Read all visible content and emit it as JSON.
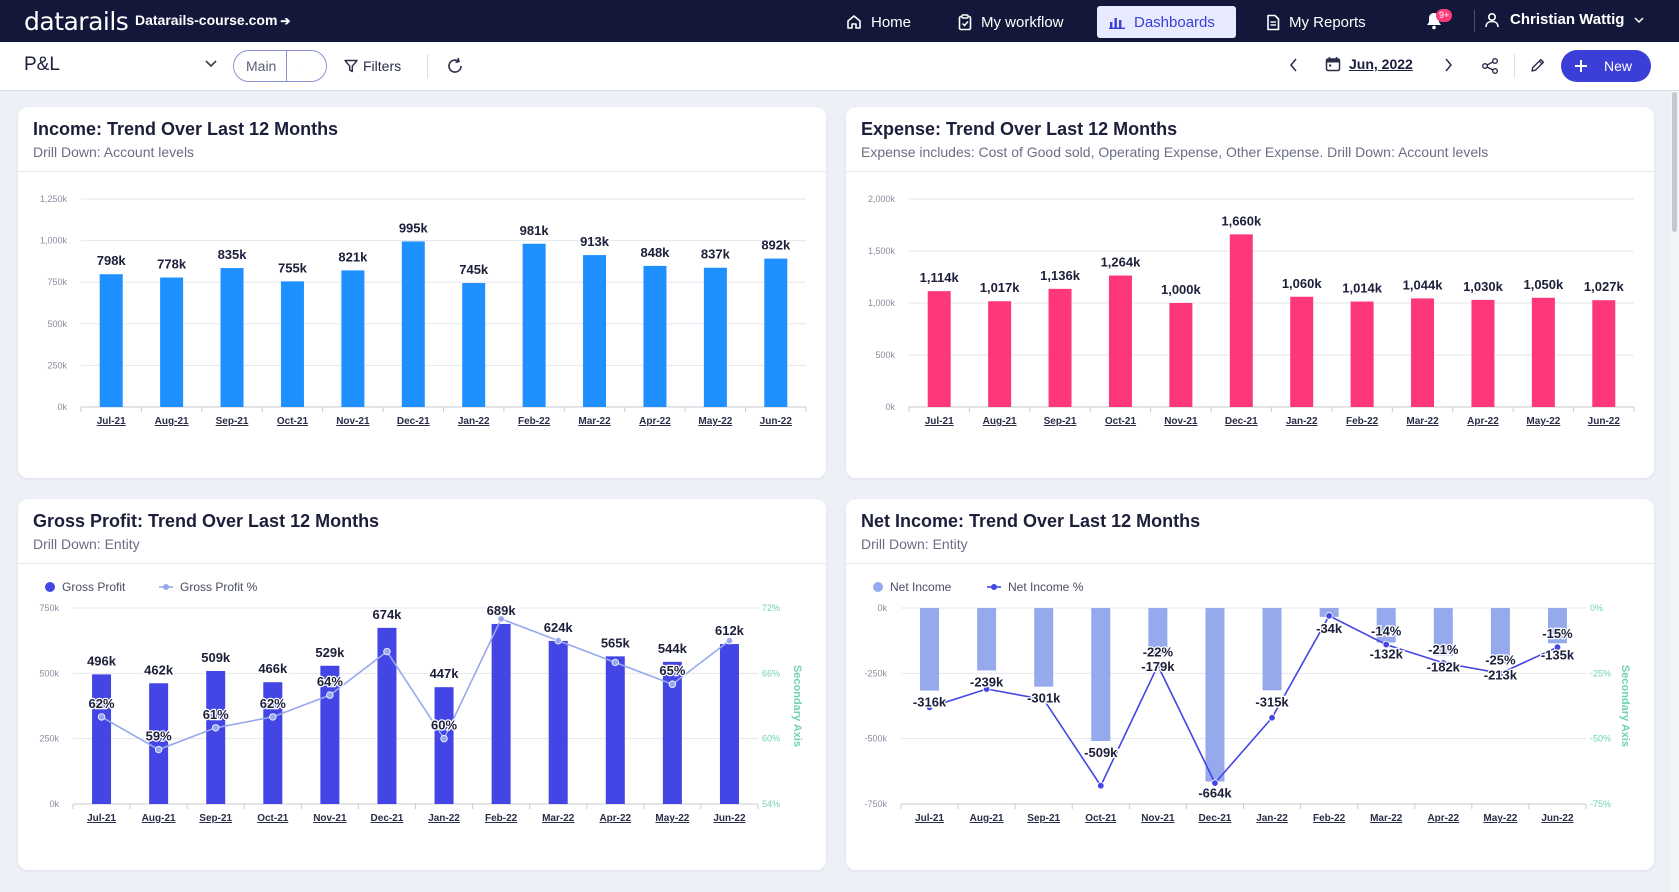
{
  "topbar": {
    "logo": "datarails",
    "domain": "Datarails-course.com",
    "nav": [
      {
        "label": "Home",
        "icon": "home-icon"
      },
      {
        "label": "My workflow",
        "icon": "clipboard-icon"
      },
      {
        "label": "Dashboards",
        "icon": "bar-chart-icon",
        "active": true
      },
      {
        "label": "My Reports",
        "icon": "document-icon"
      }
    ],
    "notifications_badge": "9+",
    "user_name": "Christian Wattig"
  },
  "toolbar": {
    "title": "P&L",
    "view_select": "Main",
    "filters_label": "Filters",
    "date": "Jun, 2022",
    "new_label": "New"
  },
  "colors": {
    "income": "#1e90ff",
    "expense": "#fe3878",
    "gross_profit": "#4345e4",
    "gross_profit_pct": "#98a8ee",
    "net_income": "#96a9ec",
    "net_income_pct": "#4345e4",
    "secondary_axis": "#6fd3b0"
  },
  "cards": {
    "income": {
      "title": "Income: Trend Over Last 12 Months",
      "subtitle": "Drill Down: Account levels"
    },
    "expense": {
      "title": "Expense: Trend Over Last 12 Months",
      "subtitle": "Expense includes: Cost of Good sold, Operating Expense, Other Expense. Drill Down: Account levels"
    },
    "gross": {
      "title": "Gross Profit: Trend Over Last 12 Months",
      "subtitle": "Drill Down: Entity"
    },
    "net": {
      "title": "Net Income: Trend Over Last 12 Months",
      "subtitle": "Drill Down: Entity"
    }
  },
  "chart_data": [
    {
      "type": "bar",
      "title": "Income: Trend Over Last 12 Months",
      "categories": [
        "Jul-21",
        "Aug-21",
        "Sep-21",
        "Oct-21",
        "Nov-21",
        "Dec-21",
        "Jan-22",
        "Feb-22",
        "Mar-22",
        "Apr-22",
        "May-22",
        "Jun-22"
      ],
      "values": [
        798,
        778,
        835,
        755,
        821,
        995,
        745,
        981,
        913,
        848,
        837,
        892
      ],
      "labels": [
        "798k",
        "778k",
        "835k",
        "755k",
        "821k",
        "995k",
        "745k",
        "981k",
        "913k",
        "848k",
        "837k",
        "892k"
      ],
      "yticks": [
        "0k",
        "250k",
        "500k",
        "750k",
        "1,000k",
        "1,250k"
      ],
      "ylim": [
        0,
        1250
      ],
      "grid": true
    },
    {
      "type": "bar",
      "title": "Expense: Trend Over Last 12 Months",
      "categories": [
        "Jul-21",
        "Aug-21",
        "Sep-21",
        "Oct-21",
        "Nov-21",
        "Dec-21",
        "Jan-22",
        "Feb-22",
        "Mar-22",
        "Apr-22",
        "May-22",
        "Jun-22"
      ],
      "values": [
        1114,
        1017,
        1136,
        1264,
        1000,
        1660,
        1060,
        1014,
        1044,
        1030,
        1050,
        1027
      ],
      "labels": [
        "1,114k",
        "1,017k",
        "1,136k",
        "1,264k",
        "1,000k",
        "1,660k",
        "1,060k",
        "1,014k",
        "1,044k",
        "1,030k",
        "1,050k",
        "1,027k"
      ],
      "yticks": [
        "0k",
        "500k",
        "1,000k",
        "1,500k",
        "2,000k"
      ],
      "ylim": [
        0,
        2000
      ],
      "grid": true
    },
    {
      "type": "bar",
      "title": "Gross Profit: Trend Over Last 12 Months",
      "categories": [
        "Jul-21",
        "Aug-21",
        "Sep-21",
        "Oct-21",
        "Nov-21",
        "Dec-21",
        "Jan-22",
        "Feb-22",
        "Mar-22",
        "Apr-22",
        "May-22",
        "Jun-22"
      ],
      "series": [
        {
          "name": "Gross Profit",
          "kind": "bar",
          "values": [
            496,
            462,
            509,
            466,
            529,
            674,
            447,
            689,
            624,
            565,
            544,
            612
          ],
          "labels": [
            "496k",
            "462k",
            "509k",
            "466k",
            "529k",
            "674k",
            "447k",
            "689k",
            "624k",
            "565k",
            "544k",
            "612k"
          ]
        },
        {
          "name": "Gross Profit %",
          "kind": "line",
          "axis": "secondary",
          "values": [
            62,
            59,
            61,
            62,
            64,
            68,
            60,
            71,
            69,
            67,
            65,
            69
          ],
          "labels": [
            "62%",
            "59%",
            "61%",
            "62%",
            "64%",
            "",
            "60%",
            "",
            "",
            "",
            "65%",
            ""
          ]
        }
      ],
      "yticks": [
        "0k",
        "250k",
        "500k",
        "750k"
      ],
      "ylim": [
        0,
        750
      ],
      "y2ticks": [
        "54%",
        "60%",
        "66%",
        "72%"
      ],
      "y2lim": [
        54,
        72
      ],
      "y2label": "Secondary Axis",
      "legend": "top-left",
      "grid": true
    },
    {
      "type": "bar",
      "title": "Net Income: Trend Over Last 12 Months",
      "categories": [
        "Jul-21",
        "Aug-21",
        "Sep-21",
        "Oct-21",
        "Nov-21",
        "Dec-21",
        "Jan-22",
        "Feb-22",
        "Mar-22",
        "Apr-22",
        "May-22",
        "Jun-22"
      ],
      "series": [
        {
          "name": "Net Income",
          "kind": "bar",
          "values": [
            -316,
            -239,
            -301,
            -509,
            -179,
            -664,
            -315,
            -34,
            -132,
            -182,
            -213,
            -135
          ],
          "labels": [
            "-316k",
            "-239k",
            "-301k",
            "-509k",
            "-179k",
            "-664k",
            "-315k",
            "-34k",
            "-132k",
            "-182k",
            "-213k",
            "-135k"
          ]
        },
        {
          "name": "Net Income %",
          "kind": "line",
          "axis": "secondary",
          "values": [
            -38,
            -31,
            -35,
            -68,
            -22,
            -67,
            -42,
            -3,
            -14,
            -21,
            -25,
            -15
          ],
          "labels": [
            "",
            "",
            "",
            "",
            "-22%",
            "",
            "",
            "",
            "-14%",
            "-21%",
            "-25%",
            "-15%"
          ]
        }
      ],
      "yticks": [
        "-750k",
        "-500k",
        "-250k",
        "0k"
      ],
      "ylim": [
        -750,
        0
      ],
      "y2ticks": [
        "-75%",
        "-50%",
        "-25%",
        "0%"
      ],
      "y2lim": [
        -75,
        0
      ],
      "y2label": "Secondary Axis",
      "legend": "top-left",
      "grid": true
    }
  ]
}
